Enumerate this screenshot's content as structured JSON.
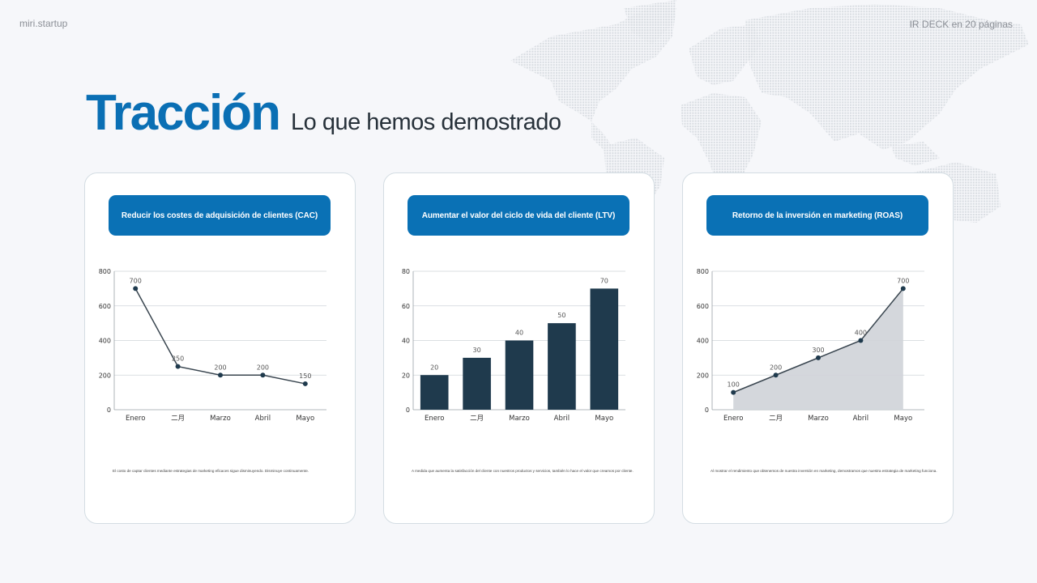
{
  "header": {
    "brand": "miri.startup",
    "deck_label": "IR DECK en 20 páginas"
  },
  "title": {
    "main": "Tracción",
    "sub": "Lo que hemos demostrado"
  },
  "colors": {
    "accent": "#0a6fb4",
    "button": "#0a71b5",
    "series": "#1f3a4d",
    "area_fill": "#cfd3d8",
    "background": "#f6f7fa"
  },
  "cards": [
    {
      "heading": "Reducir los costes de adquisición de clientes (CAC)",
      "caption": "El costo de captar clientes mediante estrategias de marketing eficaces sigue disminuyendo. Disminuye continuamente."
    },
    {
      "heading": "Aumentar el valor del ciclo de vida del cliente (LTV)",
      "caption": "A medida que aumenta la satisfacción del cliente con nuestros productos y servicios, también lo hace el valor que creamos por cliente."
    },
    {
      "heading": "Retorno de la inversión en marketing (ROAS)",
      "caption": "Al mostrar el rendimiento que obtenemos de nuestra inversión en marketing, demostramos que nuestra estrategia de marketing funciona."
    }
  ],
  "chart_data": [
    {
      "type": "line",
      "title": "Reducir los costes de adquisición de clientes (CAC)",
      "categories": [
        "Enero",
        "二月",
        "Marzo",
        "Abril",
        "Mayo"
      ],
      "values": [
        700,
        250,
        200,
        200,
        150
      ],
      "ylim": [
        0,
        800
      ],
      "yticks": [
        0,
        200,
        400,
        600,
        800
      ],
      "grid": true,
      "data_labels": true,
      "xlabel": "",
      "ylabel": ""
    },
    {
      "type": "bar",
      "title": "Aumentar el valor del ciclo de vida del cliente (LTV)",
      "categories": [
        "Enero",
        "二月",
        "Marzo",
        "Abril",
        "Mayo"
      ],
      "values": [
        20,
        30,
        40,
        50,
        70
      ],
      "ylim": [
        0,
        80
      ],
      "yticks": [
        0,
        20,
        40,
        60,
        80
      ],
      "grid": true,
      "data_labels": true,
      "xlabel": "",
      "ylabel": ""
    },
    {
      "type": "area",
      "title": "Retorno de la inversión en marketing (ROAS)",
      "categories": [
        "Enero",
        "二月",
        "Marzo",
        "Abril",
        "Mayo"
      ],
      "values": [
        100,
        200,
        300,
        400,
        700
      ],
      "ylim": [
        0,
        800
      ],
      "yticks": [
        0,
        200,
        400,
        600,
        800
      ],
      "grid": true,
      "data_labels": true,
      "xlabel": "",
      "ylabel": ""
    }
  ]
}
